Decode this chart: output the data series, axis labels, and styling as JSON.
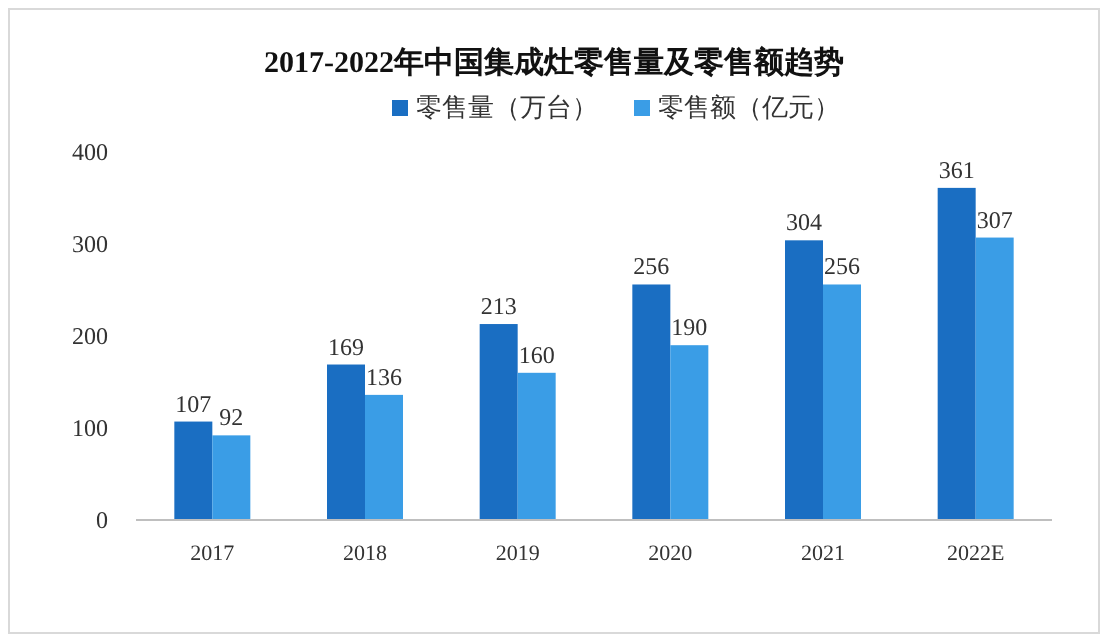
{
  "chart_data": {
    "type": "bar",
    "title": "2017-2022年中国集成灶零售量及零售额趋势",
    "categories": [
      "2017",
      "2018",
      "2019",
      "2020",
      "2021",
      "2022E"
    ],
    "series": [
      {
        "name": "零售量（万台）",
        "color": "#1a6ec2",
        "values": [
          107,
          169,
          213,
          256,
          304,
          361
        ]
      },
      {
        "name": "零售额（亿元）",
        "color": "#3a9de6",
        "values": [
          92,
          136,
          160,
          190,
          256,
          307
        ]
      }
    ],
    "ylim": [
      0,
      400
    ],
    "yticks": [
      0,
      100,
      200,
      300,
      400
    ],
    "data_labels": true,
    "legend": "top",
    "grid": false
  }
}
